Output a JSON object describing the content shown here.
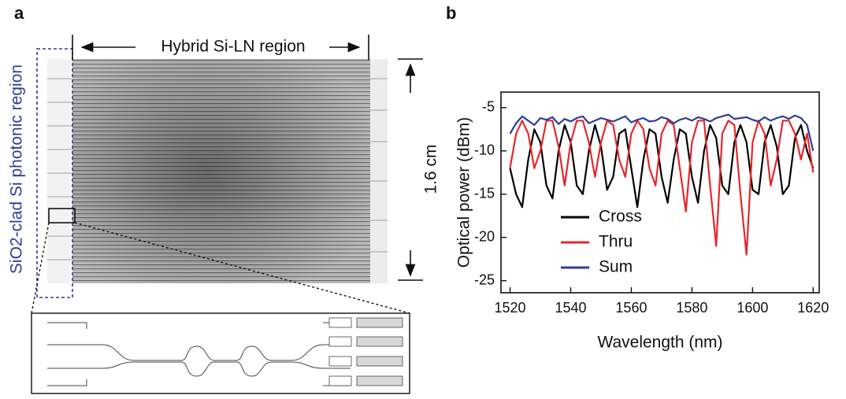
{
  "panel_labels": [
    "a",
    "b"
  ],
  "micrograph": {
    "region_label": "Hybrid Si-LN region",
    "scale_label": "1.6 cm",
    "side_label": "SiO2-clad Si photonic region"
  },
  "chart_data": {
    "type": "line",
    "xlabel": "Wavelength (nm)",
    "ylabel": "Optical power (dBm)",
    "xlim": [
      1517,
      1622
    ],
    "ylim": [
      -26.4,
      -3.2
    ],
    "xticks": [
      1520,
      1540,
      1560,
      1580,
      1600,
      1620
    ],
    "yticks": [
      -5,
      -10,
      -15,
      -20,
      -25
    ],
    "legend": "lower left",
    "x": [
      1520,
      1522,
      1524,
      1526,
      1528,
      1530,
      1532,
      1534,
      1536,
      1538,
      1540,
      1542,
      1544,
      1546,
      1548,
      1550,
      1552,
      1554,
      1556,
      1558,
      1560,
      1562,
      1564,
      1566,
      1568,
      1570,
      1572,
      1574,
      1576,
      1578,
      1580,
      1582,
      1584,
      1586,
      1588,
      1590,
      1592,
      1594,
      1596,
      1598,
      1600,
      1602,
      1604,
      1606,
      1608,
      1610,
      1612,
      1614,
      1616,
      1618,
      1620
    ],
    "series": [
      {
        "name": "Cross",
        "color": "#000000",
        "values": [
          -12,
          -15,
          -16.5,
          -11,
          -7.5,
          -9,
          -14,
          -15.5,
          -10,
          -7,
          -9,
          -14,
          -15,
          -10,
          -7,
          -9.5,
          -14.5,
          -13,
          -8,
          -7.5,
          -12,
          -16.5,
          -11,
          -7.5,
          -8,
          -13,
          -16,
          -11,
          -7.5,
          -8,
          -13,
          -16,
          -10,
          -7,
          -8.5,
          -14,
          -15,
          -9,
          -7,
          -9,
          -14.5,
          -15,
          -9,
          -7,
          -9.5,
          -15,
          -14,
          -8.5,
          -7,
          -10,
          -12
        ]
      },
      {
        "name": "Thru",
        "color": "#e8262a",
        "values": [
          -12,
          -8,
          -6.5,
          -8,
          -12,
          -10,
          -6.5,
          -6.5,
          -9.5,
          -14,
          -9,
          -6.5,
          -6.5,
          -9,
          -13,
          -9,
          -6.5,
          -7,
          -11,
          -13,
          -8,
          -6.5,
          -7.5,
          -12,
          -14,
          -8,
          -6.5,
          -7,
          -12,
          -17,
          -9,
          -6.5,
          -6.5,
          -14,
          -21,
          -8,
          -6.5,
          -7,
          -15,
          -22,
          -9,
          -6.5,
          -8,
          -14,
          -11,
          -6.5,
          -6.5,
          -8,
          -11,
          -8,
          -12.5
        ]
      },
      {
        "name": "Sum",
        "color": "#2e3d98",
        "values": [
          -8,
          -6.8,
          -6,
          -6.5,
          -7,
          -6.2,
          -6.4,
          -6.1,
          -6.9,
          -6.3,
          -6.6,
          -6.2,
          -6,
          -6.8,
          -6.5,
          -6.2,
          -6.4,
          -6.6,
          -6.3,
          -6,
          -6.7,
          -6.4,
          -6.2,
          -6.6,
          -6.5,
          -6.1,
          -6.3,
          -6.8,
          -6.4,
          -6.2,
          -6.5,
          -6.1,
          -6.3,
          -6.6,
          -6.2,
          -6,
          -5.8,
          -6.3,
          -6.2,
          -6.1,
          -6.4,
          -6.6,
          -6.1,
          -6.5,
          -6.2,
          -6,
          -6.3,
          -5.9,
          -6.2,
          -7,
          -10
        ]
      }
    ]
  }
}
